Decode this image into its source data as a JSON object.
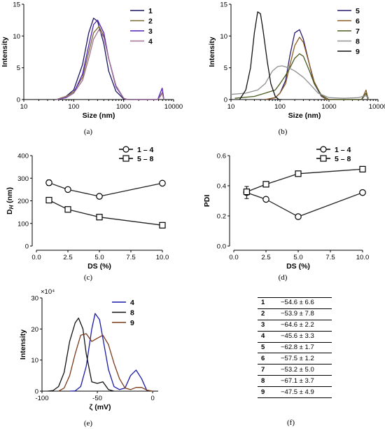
{
  "chart_data": [
    {
      "panel": "(a)",
      "type": "line",
      "xscale": "log",
      "xlim": [
        10,
        10000
      ],
      "ylim": [
        0,
        15
      ],
      "xlabel": "Size (nm)",
      "ylabel": "Intensity",
      "x_ticks": [
        "10",
        "100",
        "1000",
        "10000"
      ],
      "y_ticks": [
        "0",
        "5",
        "10",
        "15"
      ],
      "legend_position": "top-right",
      "series": [
        {
          "name": "1",
          "color": "#1a1660",
          "x": [
            45,
            70,
            100,
            150,
            200,
            250,
            300,
            400,
            500,
            700,
            1000,
            1200,
            4800,
            5400,
            5900,
            6400
          ],
          "y": [
            0,
            0.5,
            1.5,
            5.5,
            10.5,
            12.8,
            12.3,
            8.8,
            4.5,
            1.3,
            0.1,
            0,
            0,
            0.5,
            1.0,
            0
          ]
        },
        {
          "name": "2",
          "color": "#7a6a30",
          "x": [
            45,
            70,
            100,
            150,
            200,
            250,
            320,
            400,
            500,
            700,
            1000,
            1200,
            4800,
            5400,
            5900,
            6400
          ],
          "y": [
            0,
            0.5,
            1.2,
            3.5,
            7.5,
            10.5,
            11.5,
            10.0,
            6.5,
            2.2,
            0.2,
            0,
            0,
            0.6,
            1.1,
            0
          ]
        },
        {
          "name": "3",
          "color": "#5020b8",
          "x": [
            45,
            70,
            100,
            150,
            200,
            250,
            300,
            400,
            500,
            700,
            1000,
            1200,
            4800,
            5400,
            5900,
            6400
          ],
          "y": [
            0,
            0.3,
            1.0,
            4.0,
            8.5,
            11.8,
            12.5,
            10.5,
            6.5,
            2.0,
            0.2,
            0,
            0,
            1.0,
            1.8,
            0
          ]
        },
        {
          "name": "4",
          "color": "#a07090",
          "x": [
            45,
            70,
            100,
            150,
            200,
            250,
            320,
            400,
            500,
            700,
            1000,
            1200,
            4800,
            5400,
            5900,
            6400
          ],
          "y": [
            0,
            0.4,
            1.0,
            3.0,
            6.5,
            9.5,
            11.0,
            9.8,
            6.5,
            2.2,
            0.2,
            0,
            0,
            0.5,
            1.0,
            0
          ]
        }
      ]
    },
    {
      "panel": "(b)",
      "type": "line",
      "xscale": "log",
      "xlim": [
        10,
        10000
      ],
      "ylim": [
        0,
        15
      ],
      "xlabel": "Size (nm)",
      "ylabel": "Intensity",
      "x_ticks": [
        "10",
        "100",
        "1000",
        "10000"
      ],
      "y_ticks": [
        "0",
        "5",
        "10",
        "15"
      ],
      "legend_position": "top-right",
      "series": [
        {
          "name": "5",
          "color": "#2b1a70",
          "x": [
            50,
            80,
            100,
            130,
            160,
            200,
            250,
            300,
            400,
            500,
            700,
            900,
            4600,
            5200,
            5700,
            6300
          ],
          "y": [
            0,
            0.3,
            1.0,
            3.0,
            7.0,
            10.5,
            11.0,
            9.5,
            5.5,
            2.5,
            0.5,
            0,
            0,
            0.5,
            1.0,
            0
          ]
        },
        {
          "name": "6",
          "color": "#8a5a20",
          "x": [
            50,
            80,
            100,
            130,
            160,
            200,
            250,
            300,
            400,
            500,
            700,
            900,
            4600,
            5200,
            5700,
            6300
          ],
          "y": [
            0,
            0.3,
            1.0,
            2.5,
            5.5,
            8.5,
            9.8,
            9.0,
            5.5,
            2.8,
            0.6,
            0,
            0,
            0.8,
            1.5,
            0
          ]
        },
        {
          "name": "7",
          "color": "#4a5a20",
          "x": [
            12,
            30,
            50,
            80,
            100,
            130,
            160,
            200,
            250,
            300,
            400,
            500,
            700,
            1000,
            4600,
            5200,
            5700,
            6300
          ],
          "y": [
            0.2,
            0.5,
            1.0,
            1.5,
            2.5,
            3.8,
            5.0,
            6.5,
            7.2,
            6.8,
            4.5,
            2.5,
            0.7,
            0,
            0,
            0.5,
            1.0,
            0
          ]
        },
        {
          "name": "8",
          "color": "#909090",
          "x": [
            10,
            20,
            35,
            50,
            70,
            90,
            110,
            150,
            200,
            300,
            400,
            600,
            1000,
            2000,
            4000,
            5500,
            6500
          ],
          "y": [
            0.8,
            1.0,
            1.5,
            2.5,
            4.5,
            5.2,
            5.3,
            5.0,
            4.5,
            3.5,
            2.5,
            1.0,
            0.3,
            0.2,
            0.3,
            0.6,
            0.3
          ]
        },
        {
          "name": "9",
          "color": "#111111",
          "x": [
            15,
            20,
            25,
            30,
            35,
            40,
            45,
            55,
            65,
            80,
            95,
            110
          ],
          "y": [
            0,
            1.5,
            5.0,
            10.5,
            13.8,
            13.5,
            11.0,
            6.0,
            2.5,
            0.5,
            0,
            0
          ]
        }
      ]
    },
    {
      "panel": "(c)",
      "type": "line",
      "xlim": [
        0,
        10
      ],
      "ylim": [
        0,
        400
      ],
      "xlabel": "DS (%)",
      "ylabel": "D_H (nm)",
      "x_ticks": [
        "0.0",
        "2.5",
        "5.0",
        "7.5",
        "10.0"
      ],
      "y_ticks": [
        "0",
        "100",
        "200",
        "300",
        "400"
      ],
      "legend_position": "top-right",
      "series": [
        {
          "name": "1 – 4",
          "marker": "circle",
          "x": [
            1,
            2.5,
            5,
            10
          ],
          "y": [
            280,
            250,
            220,
            278
          ],
          "err": [
            12,
            0,
            0,
            0
          ]
        },
        {
          "name": "5 – 8",
          "marker": "square",
          "x": [
            1,
            2.5,
            5,
            10
          ],
          "y": [
            203,
            162,
            128,
            92
          ],
          "err": [
            0,
            0,
            0,
            0
          ]
        }
      ]
    },
    {
      "panel": "(d)",
      "type": "line",
      "xlim": [
        0,
        10
      ],
      "ylim": [
        0,
        0.6
      ],
      "xlabel": "DS (%)",
      "ylabel": "PDI",
      "x_ticks": [
        "0.0",
        "2.5",
        "5.0",
        "7.5",
        "10.0"
      ],
      "y_ticks": [
        "0.0",
        "0.2",
        "0.4",
        "0.6"
      ],
      "legend_position": "top-right",
      "series": [
        {
          "name": "1 – 4",
          "marker": "circle",
          "x": [
            1,
            2.5,
            5,
            10
          ],
          "y": [
            0.355,
            0.31,
            0.195,
            0.355
          ],
          "err": [
            0.04,
            0,
            0,
            0
          ]
        },
        {
          "name": "5 – 8",
          "marker": "square",
          "x": [
            1,
            2.5,
            5,
            10
          ],
          "y": [
            0.36,
            0.41,
            0.48,
            0.51
          ],
          "err": [
            0,
            0,
            0,
            0.015
          ]
        }
      ]
    },
    {
      "panel": "(e)",
      "type": "line",
      "xlim": [
        -100,
        5
      ],
      "ylim": [
        0,
        300000
      ],
      "xlabel": "ζ (mV)",
      "ylabel": "Intensity",
      "y_multiplier": "×10⁴",
      "x_ticks": [
        "-100",
        "-50",
        "0"
      ],
      "y_ticks": [
        "0",
        "10",
        "20",
        "30"
      ],
      "legend_position": "top-right",
      "series": [
        {
          "name": "4",
          "color": "#1a1aa8",
          "x": [
            -75,
            -70,
            -65,
            -60,
            -55,
            -52,
            -48,
            -45,
            -40,
            -35,
            -30,
            -25,
            -20,
            -15,
            -10,
            -5
          ],
          "y": [
            0,
            1000,
            15000,
            80000,
            200000,
            250000,
            230000,
            170000,
            70000,
            15000,
            5000,
            10000,
            50000,
            68000,
            40000,
            0
          ]
        },
        {
          "name": "8",
          "color": "#111111",
          "x": [
            -95,
            -90,
            -85,
            -80,
            -75,
            -70,
            -67,
            -63,
            -60,
            -55,
            -50,
            -45,
            -40,
            -35
          ],
          "y": [
            0,
            2000,
            15000,
            60000,
            160000,
            220000,
            235000,
            200000,
            120000,
            30000,
            25000,
            30000,
            5000,
            0
          ]
        },
        {
          "name": "9",
          "color": "#7a3a1a",
          "x": [
            -85,
            -80,
            -75,
            -70,
            -65,
            -60,
            -55,
            -50,
            -45,
            -40,
            -35,
            -30,
            -25,
            -20,
            -15,
            -10,
            -5,
            0
          ],
          "y": [
            0,
            10000,
            50000,
            120000,
            180000,
            185000,
            160000,
            170000,
            180000,
            150000,
            90000,
            40000,
            10000,
            5000,
            12000,
            12000,
            3000,
            0
          ]
        }
      ]
    }
  ],
  "captions": {
    "a": "(a)",
    "b": "(b)",
    "c": "(c)",
    "d": "(d)",
    "e": "(e)",
    "f": "(f)"
  },
  "zeta_table": [
    {
      "id": "1",
      "value": "−54.6 ± 6.6"
    },
    {
      "id": "2",
      "value": "−53.9 ± 7.8"
    },
    {
      "id": "3",
      "value": "−64.6 ± 2.2"
    },
    {
      "id": "4",
      "value": "−45.6 ± 3.3"
    },
    {
      "id": "5",
      "value": "−62.8 ± 1.7"
    },
    {
      "id": "6",
      "value": "−57.5 ± 1.2"
    },
    {
      "id": "7",
      "value": "−53.2 ± 5.0"
    },
    {
      "id": "8",
      "value": "−67.1 ± 3.7"
    },
    {
      "id": "9",
      "value": "−47.5 ± 4.9"
    }
  ]
}
